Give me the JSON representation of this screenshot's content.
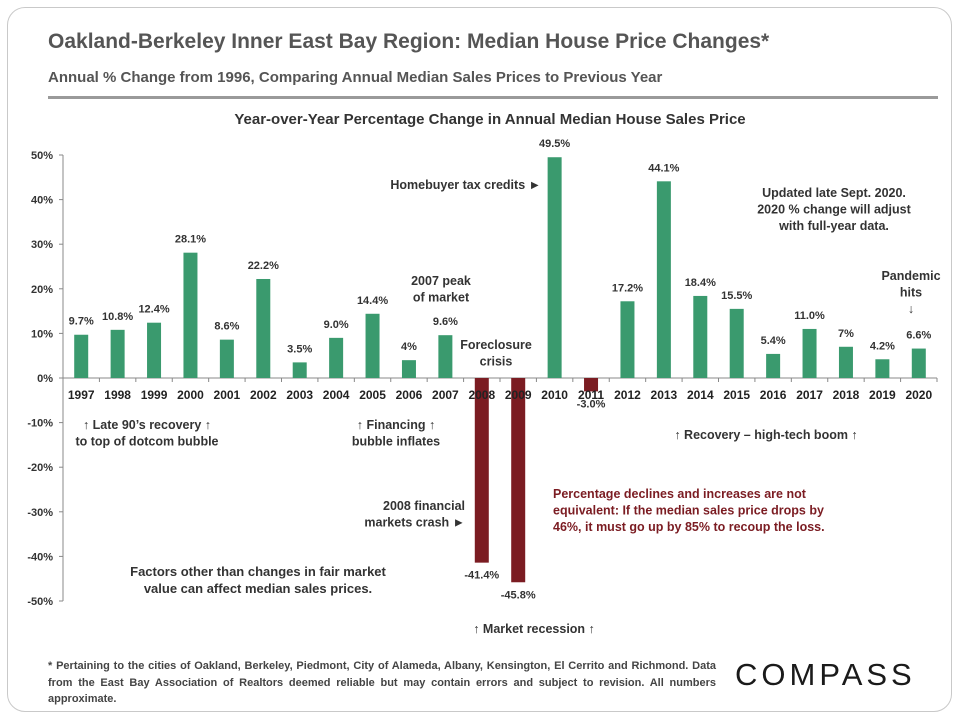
{
  "header": {
    "title": "Oakland-Berkeley Inner East Bay Region: Median House Price Changes*",
    "subtitle": "Annual % Change from 1996, Comparing Annual Median Sales Prices to Previous Year"
  },
  "chart_data": {
    "type": "bar",
    "title": "Year-over-Year Percentage Change in Annual Median House Sales Price",
    "xlabel": "",
    "ylabel": "",
    "ylim": [
      -50,
      50
    ],
    "y_ticks": [
      "50%",
      "40%",
      "30%",
      "20%",
      "10%",
      "0%",
      "-10%",
      "-20%",
      "-30%",
      "-40%",
      "-50%"
    ],
    "grid": false,
    "categories": [
      "1997",
      "1998",
      "1999",
      "2000",
      "2001",
      "2002",
      "2003",
      "2004",
      "2005",
      "2006",
      "2007",
      "2008",
      "2009",
      "2010",
      "2011",
      "2012",
      "2013",
      "2014",
      "2015",
      "2016",
      "2017",
      "2018",
      "2019",
      "2020"
    ],
    "values": [
      9.7,
      10.8,
      12.4,
      28.1,
      8.6,
      22.2,
      3.5,
      9.0,
      14.4,
      4,
      9.6,
      -41.4,
      -45.8,
      49.5,
      -3.0,
      17.2,
      44.1,
      18.4,
      15.5,
      5.4,
      11.0,
      7,
      4.2,
      6.6
    ],
    "data_labels": [
      "9.7%",
      "10.8%",
      "12.4%",
      "28.1%",
      "8.6%",
      "22.2%",
      "3.5%",
      "9.0%",
      "14.4%",
      "4%",
      "9.6%",
      "-41.4%",
      "-45.8%",
      "49.5%",
      "-3.0%",
      "17.2%",
      "44.1%",
      "18.4%",
      "15.5%",
      "5.4%",
      "11.0%",
      "7%",
      "4.2%",
      "6.6%"
    ],
    "colors": {
      "positive": "#3a9a6e",
      "negative": "#7b1c22"
    },
    "annotations": [
      {
        "id": "late90s",
        "lines": [
          "↑ Late 90’s recovery ↑",
          "to top of dotcom bubble"
        ]
      },
      {
        "id": "financing",
        "lines": [
          "↑ Financing ↑",
          "bubble inflates"
        ]
      },
      {
        "id": "peak2007",
        "lines": [
          "2007 peak",
          "of market"
        ]
      },
      {
        "id": "foreclosure",
        "lines": [
          "Foreclosure",
          "crisis"
        ]
      },
      {
        "id": "taxcredits",
        "lines": [
          "Homebuyer tax credits ►"
        ]
      },
      {
        "id": "updated",
        "lines": [
          "Updated late Sept. 2020.",
          "2020 % change will adjust",
          "with full-year data."
        ]
      },
      {
        "id": "pandemic",
        "lines": [
          "Pandemic",
          "hits",
          "↓"
        ]
      },
      {
        "id": "recovery",
        "lines": [
          "↑  Recovery – high-tech boom ↑"
        ]
      },
      {
        "id": "crash2008",
        "lines": [
          "2008 financial",
          "markets crash ►"
        ]
      },
      {
        "id": "equivalence",
        "lines": [
          "Percentage declines and increases are not",
          "equivalent: If the median sales price drops by",
          "46%, it must go up by 85% to recoup the loss."
        ]
      },
      {
        "id": "factors",
        "lines": [
          "Factors other than changes in fair market",
          "value can affect median sales prices."
        ]
      },
      {
        "id": "recession",
        "lines": [
          "↑  Market recession  ↑"
        ]
      }
    ]
  },
  "footnote": "* Pertaining to the cities of Oakland, Berkeley, Piedmont, City of Alameda, Albany, Kensington, El Cerrito and Richmond. Data from the East Bay Association of Realtors deemed reliable but may contain errors and subject to revision. All numbers approximate.",
  "brand": {
    "logo_text": "COMPASS"
  }
}
